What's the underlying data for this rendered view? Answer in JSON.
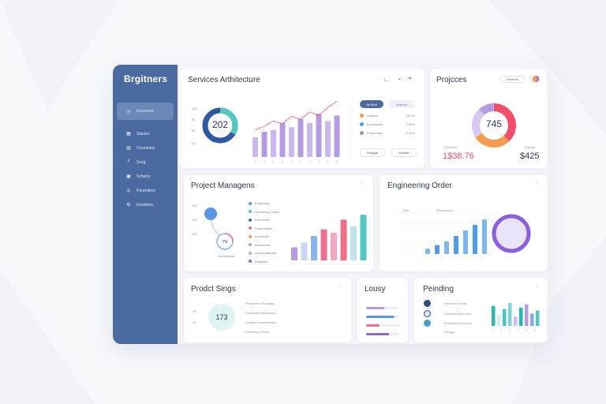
{
  "colors": {
    "sidebar": "#4b6aa0",
    "sidebar_active": "#6c88b9",
    "purple": "#b69be0",
    "pink": "#ef6f8f",
    "teal": "#54c7c0",
    "blue": "#5b95e5",
    "orange": "#f59a4e",
    "red": "#ee4f6b",
    "dark": "#273250"
  },
  "sidebar": {
    "brand": "Brgitners",
    "items": [
      {
        "label": "Ezsvoces",
        "icon": "clock-icon",
        "active": true
      },
      {
        "label": "Slastes",
        "icon": "grid-icon"
      },
      {
        "label": "Chzsaniny",
        "icon": "calendar-icon"
      },
      {
        "label": "Snsg",
        "icon": "chart-icon"
      },
      {
        "label": "Scholny",
        "icon": "document-icon"
      },
      {
        "label": "Paretntiect",
        "icon": "user-icon"
      },
      {
        "label": "Ebsbiters",
        "icon": "settings-icon"
      }
    ]
  },
  "services": {
    "title": "Services Arthitecture",
    "donut_value": "202",
    "axis_ticks": [
      "135",
      "85",
      "50",
      "25"
    ],
    "x_ticks": [
      "1",
      "2",
      "3",
      "4",
      "5",
      "6",
      "7",
      "8",
      "9",
      "10"
    ],
    "pills": [
      "By Mod",
      "Ezssore"
    ],
    "legend": [
      {
        "label": "Sraceld",
        "value": "15.5%",
        "color": "#f59a4e"
      },
      {
        "label": "Evnzweses",
        "value": "2.52%",
        "color": "#5b95e5"
      },
      {
        "label": "Phanenses",
        "value": "2.52%",
        "color": "#8a97b8"
      }
    ],
    "buttons": [
      "Eseggs",
      "Pausar"
    ]
  },
  "projects": {
    "title": "Projcces",
    "tag": "Siestuns",
    "donut_value": "745",
    "left_label": "Evensies",
    "left_value": "1$38.76",
    "right_label": "Eseilab",
    "right_value": "$425"
  },
  "project_mgmt": {
    "title": "Project Managens",
    "axis_ticks": [
      "100",
      "750",
      "200"
    ],
    "node_value": "Y9",
    "node_caption": "Gasianlebes",
    "legend": [
      {
        "label": "Pbadoricg",
        "color": "#5b95e5"
      },
      {
        "label": "Oncessing Sansy",
        "color": "#54c7c0"
      },
      {
        "label": "Pnercenss",
        "color": "#4b6aa0"
      },
      {
        "label": "Poaneasees",
        "color": "#ef6f8f"
      },
      {
        "label": "Pnochess",
        "color": "#f59a4e"
      },
      {
        "label": "Prancessis",
        "color": "#b69be0"
      },
      {
        "label": "Gosnevaaterss",
        "color": "#d2a4dc"
      },
      {
        "label": "Paraalbs",
        "color": "#8a6ad0"
      }
    ]
  },
  "engineering": {
    "title": "Engineering Order",
    "legend": [
      "Tdise",
      "Pencersuss"
    ]
  },
  "product": {
    "title": "Prodct Sings",
    "big_value": "173",
    "side_ticks": [
      "30",
      "38"
    ],
    "items": [
      "Pesctinees Snoaase",
      "Ezerdned Sesesshics",
      "Gesdlet Pneesebiices",
      "Ezesshing Snoec"
    ]
  },
  "lousy": {
    "title": "Lousy"
  },
  "pending": {
    "title": "Peinding",
    "items": [
      "Penslnes Snoss",
      "Eosdioed Sesoicss",
      "Pcenidnet Sssnehie",
      "Sesppir"
    ],
    "x_ticks": [
      "1",
      "2",
      "3",
      "4",
      "5",
      "6"
    ]
  },
  "chart_data": [
    {
      "type": "bar",
      "name": "services-bars",
      "categories": [
        "1",
        "2",
        "3",
        "4",
        "5",
        "6",
        "7",
        "8",
        "9",
        "10"
      ],
      "values": [
        22,
        28,
        30,
        38,
        33,
        42,
        38,
        48,
        40,
        46
      ],
      "line": [
        30,
        34,
        40,
        37,
        45,
        42,
        50,
        46,
        55,
        62
      ],
      "ylim": [
        0,
        70
      ]
    },
    {
      "type": "pie",
      "name": "projects-donut",
      "values": [
        38,
        28,
        22,
        12
      ],
      "colors": [
        "#ee4f6b",
        "#f59a4e",
        "#d7c8f1",
        "#b69be0"
      ]
    },
    {
      "type": "bar",
      "name": "project-mgmt-bars",
      "values": [
        16,
        22,
        30,
        38,
        34,
        50,
        42,
        56
      ],
      "colors": [
        "#b69be0",
        "#cbd7f2",
        "#8bb3ec",
        "#ef6f8f",
        "#f2a6c0",
        "#ee6f85",
        "#bfe3e6",
        "#54c7c0"
      ],
      "ylim": [
        0,
        60
      ]
    },
    {
      "type": "bar",
      "name": "engineering-bars",
      "values": [
        6,
        10,
        14,
        20,
        26,
        32,
        38
      ],
      "ylim": [
        0,
        45
      ]
    },
    {
      "type": "bar",
      "name": "pending-bars",
      "values": [
        26,
        14,
        22,
        30,
        12,
        24,
        28,
        16,
        20
      ],
      "colors": [
        "#2fb6ac",
        "#cdeff0",
        "#49c3c7",
        "#7fd2dd",
        "#c9bff0",
        "#2fb6ac",
        "#b69be0",
        "#8aa6e6",
        "#54c7c0"
      ],
      "ylim": [
        0,
        35
      ]
    },
    {
      "type": "bar",
      "name": "lousy-progress",
      "values": [
        0.55,
        0.85,
        0.4,
        0.7
      ],
      "colors": [
        "#b69be0",
        "#5b95e5",
        "#ef6f8f",
        "#8a6ad0"
      ]
    }
  ]
}
